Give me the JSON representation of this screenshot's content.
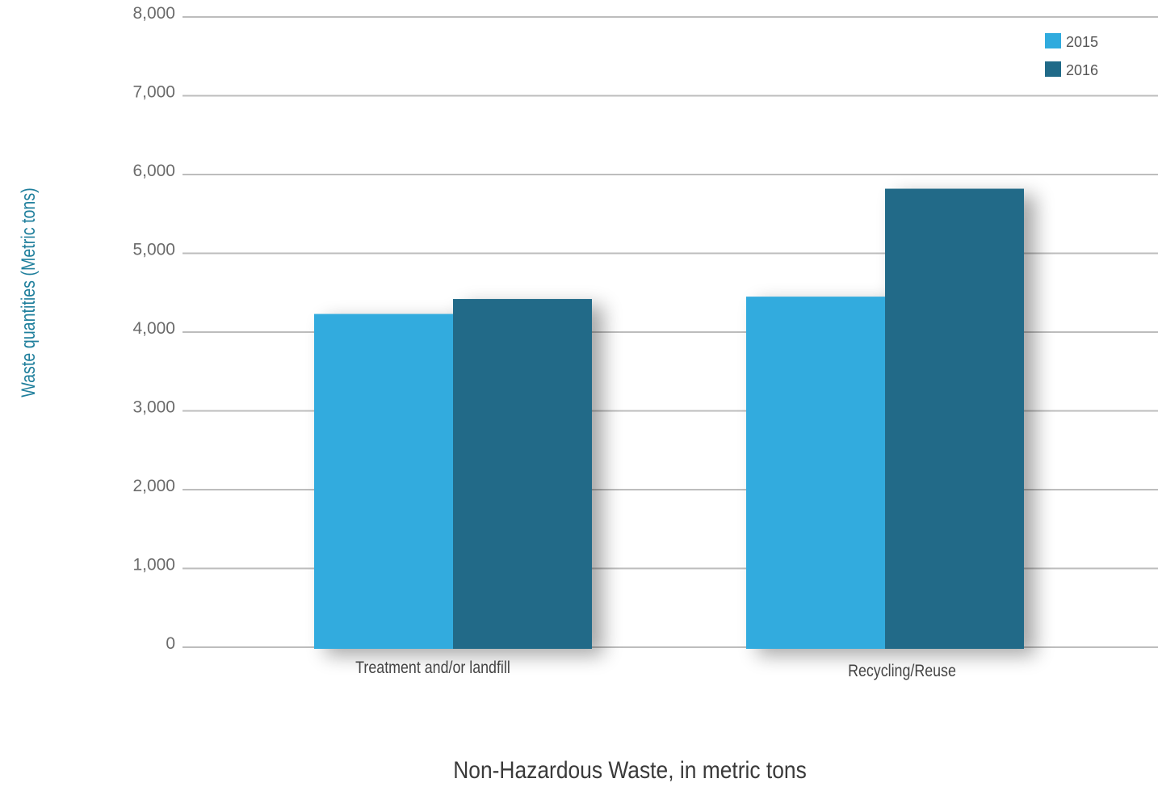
{
  "chart_data": {
    "type": "bar",
    "categories": [
      "Treatment and/or landfill",
      "Recycling/Reuse"
    ],
    "series": [
      {
        "name": "2015",
        "values": [
          4230,
          4450
        ],
        "color": "#30abde"
      },
      {
        "name": "2016",
        "values": [
          4420,
          5820
        ],
        "color": "#206a88"
      }
    ],
    "title": "",
    "xlabel": "Non-Hazardous Waste, in metric tons",
    "ylabel": "Waste quantities (Metric tons)",
    "ylim": [
      0,
      8000
    ],
    "yticks": [
      0,
      1000,
      2000,
      3000,
      4000,
      5000,
      6000,
      7000,
      8000
    ],
    "ytick_labels": [
      "0",
      "1,000",
      "2,000",
      "3,000",
      "4,000",
      "5,000",
      "6,000",
      "7,000",
      "8,000"
    ],
    "grid": true,
    "legend_position": "top-right"
  }
}
